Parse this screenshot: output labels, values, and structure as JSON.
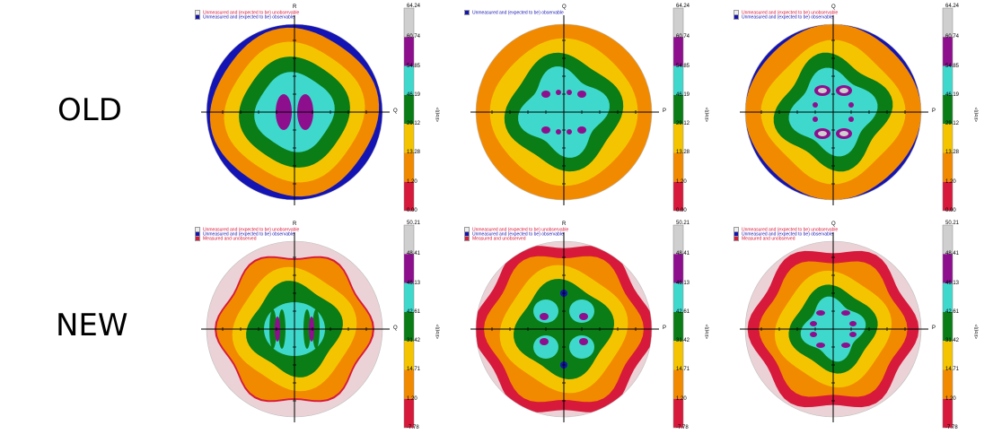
{
  "rows": [
    {
      "label": "OLD"
    },
    {
      "label": "NEW"
    }
  ],
  "colors": {
    "white": "#f2f2f2",
    "red": "#d7193b",
    "orange": "#f28a00",
    "yellow": "#f5c400",
    "green": "#0a7d17",
    "cyan": "#3fd8cc",
    "purple": "#8e0f8e",
    "speckle": "#cfcfcf",
    "blue": "#1414b4",
    "pink": "#ead2d6"
  },
  "legend_notes": {
    "unmeasured_unobservable": "Unmeasured and (expected to be) unobservable",
    "unmeasured_observable": "Unmeasured and (expected to be) observable",
    "measured_unobserved": "Measured and unobserved"
  },
  "scales": {
    "old": [
      "64.24",
      "60.74",
      "54.85",
      "46.19",
      "29.12",
      "13.28",
      "1.20",
      "0.00"
    ],
    "new": [
      "50.21",
      "48.41",
      "46.13",
      "42.61",
      "31.42",
      "14.71",
      "1.20",
      "-7.78"
    ]
  },
  "unit": "<I/σ(I)>",
  "panels": [
    {
      "id": "old-1",
      "row": 0,
      "col": 0,
      "top_axis": "R",
      "right_axis": "Q",
      "notes": [
        "unmeasured_unobservable",
        "unmeasured_observable"
      ]
    },
    {
      "id": "old-2",
      "row": 0,
      "col": 1,
      "top_axis": "Q",
      "right_axis": "P",
      "notes": [
        "unmeasured_observable"
      ]
    },
    {
      "id": "old-3",
      "row": 0,
      "col": 2,
      "top_axis": "Q",
      "right_axis": "P",
      "notes": [
        "unmeasured_unobservable",
        "unmeasured_observable"
      ]
    },
    {
      "id": "new-1",
      "row": 1,
      "col": 0,
      "top_axis": "R",
      "right_axis": "Q",
      "notes": [
        "unmeasured_unobservable",
        "unmeasured_observable",
        "measured_unobserved"
      ]
    },
    {
      "id": "new-2",
      "row": 1,
      "col": 1,
      "top_axis": "R",
      "right_axis": "P",
      "notes": [
        "unmeasured_unobservable",
        "unmeasured_observable",
        "measured_unobserved"
      ]
    },
    {
      "id": "new-3",
      "row": 1,
      "col": 2,
      "top_axis": "Q",
      "right_axis": "P",
      "notes": [
        "unmeasured_unobservable",
        "unmeasured_observable",
        "measured_unobserved"
      ]
    }
  ]
}
